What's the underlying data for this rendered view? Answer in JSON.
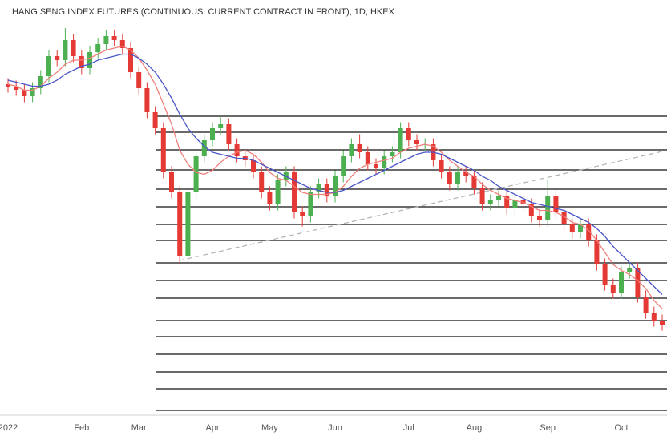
{
  "chart_data": {
    "type": "candlestick",
    "title": "HANG SENG INDEX FUTURES (CONTINUOUS: CURRENT CONTRACT IN FRONT), 1D, HKEX",
    "categories": [
      "2022",
      null,
      null,
      null,
      null,
      null,
      null,
      null,
      null,
      "Feb",
      null,
      null,
      null,
      null,
      null,
      null,
      "Mar",
      null,
      null,
      null,
      null,
      null,
      null,
      null,
      null,
      "Apr",
      null,
      null,
      null,
      null,
      null,
      null,
      "May",
      null,
      null,
      null,
      null,
      null,
      null,
      null,
      "Jun",
      null,
      null,
      null,
      null,
      null,
      null,
      null,
      null,
      "Jul",
      null,
      null,
      null,
      null,
      null,
      null,
      null,
      "Aug",
      null,
      null,
      null,
      null,
      null,
      null,
      null,
      null,
      "Sep",
      null,
      null,
      null,
      null,
      null,
      null,
      null,
      null,
      "Oct",
      null,
      null,
      null,
      null,
      null
    ],
    "opens": [
      23700,
      23640,
      23560,
      23400,
      23600,
      23900,
      24400,
      24300,
      24800,
      24400,
      24100,
      24500,
      24700,
      24900,
      24800,
      24600,
      24000,
      23600,
      23000,
      22600,
      21500,
      21000,
      19400,
      21000,
      21900,
      22300,
      22600,
      22700,
      22200,
      21900,
      21800,
      21500,
      21000,
      20700,
      21300,
      21500,
      20500,
      20400,
      21000,
      21200,
      20900,
      21400,
      21900,
      22200,
      22000,
      21700,
      21600,
      21900,
      22000,
      22600,
      22300,
      22200,
      22200,
      21800,
      21500,
      21200,
      21500,
      21400,
      21100,
      20700,
      20800,
      20900,
      20600,
      20800,
      20700,
      20400,
      20300,
      20900,
      20500,
      20200,
      20000,
      20200,
      19800,
      19200,
      18700,
      18500,
      19000,
      19100,
      18400,
      18000,
      17800
    ],
    "highs": [
      23850,
      23790,
      23710,
      23750,
      24050,
      24550,
      24550,
      25100,
      24950,
      24550,
      24650,
      24850,
      25050,
      25050,
      24950,
      24750,
      24150,
      23750,
      23150,
      22750,
      21650,
      21150,
      21150,
      22050,
      22450,
      22750,
      22900,
      22850,
      22350,
      22050,
      21950,
      21650,
      21150,
      21450,
      21650,
      21650,
      20650,
      21150,
      21350,
      21350,
      21550,
      22050,
      22350,
      22450,
      22150,
      21850,
      22050,
      22150,
      22750,
      22750,
      22450,
      22350,
      22350,
      21950,
      21650,
      21650,
      21650,
      21550,
      21250,
      20950,
      21050,
      21050,
      20950,
      20950,
      20850,
      20550,
      21300,
      21050,
      20650,
      20350,
      20350,
      20350,
      19950,
      19350,
      18850,
      19150,
      19250,
      19250,
      18550,
      18150,
      17950
    ],
    "lows": [
      23490,
      23410,
      23250,
      23250,
      23450,
      23750,
      24150,
      24150,
      24250,
      23950,
      23950,
      24350,
      24550,
      24650,
      24450,
      23850,
      23450,
      22850,
      22450,
      21350,
      20850,
      19200,
      19250,
      20850,
      21750,
      22150,
      22450,
      22050,
      21750,
      21650,
      21350,
      20850,
      20550,
      20550,
      21150,
      20350,
      20150,
      20250,
      20850,
      20750,
      20750,
      21250,
      21750,
      21850,
      21550,
      21450,
      21450,
      21750,
      21850,
      22150,
      22050,
      22050,
      21650,
      21350,
      21050,
      21050,
      21250,
      20950,
      20550,
      20550,
      20650,
      20450,
      20450,
      20550,
      20250,
      20150,
      20150,
      20350,
      20050,
      19850,
      19850,
      19650,
      19050,
      18550,
      18350,
      18350,
      18850,
      18250,
      17850,
      17650,
      17550
    ],
    "closes": [
      23640,
      23560,
      23400,
      23600,
      23900,
      24400,
      24300,
      24800,
      24400,
      24100,
      24500,
      24700,
      24900,
      24800,
      24600,
      24000,
      23600,
      23000,
      22600,
      21500,
      21000,
      19400,
      21000,
      21900,
      22300,
      22600,
      22700,
      22200,
      21900,
      21800,
      21500,
      21000,
      20700,
      21300,
      21500,
      20500,
      20400,
      21000,
      21200,
      20900,
      21400,
      21900,
      22200,
      22000,
      21700,
      21600,
      21900,
      22000,
      22600,
      22300,
      22200,
      22200,
      21800,
      21500,
      21200,
      21500,
      21400,
      21100,
      20700,
      20800,
      20900,
      20600,
      20800,
      20700,
      20400,
      20300,
      20900,
      20500,
      20200,
      20000,
      20200,
      19800,
      19200,
      18700,
      18500,
      19000,
      19100,
      18400,
      18000,
      17800,
      17700
    ],
    "up_color": "#4caf50",
    "down_color": "#e53935",
    "moving_averages": [
      {
        "color": "#ef7f7a",
        "values": [
          23700,
          23650,
          23550,
          23550,
          23650,
          23850,
          24000,
          24200,
          24300,
          24300,
          24350,
          24450,
          24550,
          24600,
          24650,
          24550,
          24350,
          24050,
          23700,
          23200,
          22700,
          22050,
          21700,
          21500,
          21450,
          21550,
          21750,
          21900,
          22000,
          22050,
          21950,
          21750,
          21500,
          21350,
          21300,
          21150,
          21000,
          20950,
          20950,
          20950,
          21000,
          21150,
          21400,
          21600,
          21700,
          21750,
          21800,
          21850,
          22000,
          22100,
          22150,
          22200,
          22150,
          22000,
          21800,
          21650,
          21500,
          21400,
          21200,
          21050,
          20950,
          20850,
          20800,
          20750,
          20650,
          20550,
          20550,
          20500,
          20400,
          20250,
          20200,
          20050,
          19800,
          19500,
          19200,
          19050,
          18950,
          18800,
          18600,
          18300,
          18100
        ]
      },
      {
        "color": "#4a56c8",
        "values": [
          23800,
          23750,
          23700,
          23650,
          23650,
          23700,
          23800,
          23950,
          24050,
          24150,
          24200,
          24300,
          24350,
          24400,
          24450,
          24450,
          24350,
          24200,
          24000,
          23700,
          23350,
          22950,
          22600,
          22350,
          22150,
          22000,
          21950,
          21900,
          21850,
          21850,
          21800,
          21700,
          21600,
          21500,
          21400,
          21300,
          21200,
          21100,
          21050,
          21000,
          21000,
          21050,
          21150,
          21250,
          21350,
          21450,
          21550,
          21650,
          21750,
          21850,
          21950,
          22000,
          22000,
          21950,
          21850,
          21750,
          21650,
          21550,
          21400,
          21300,
          21150,
          21050,
          20950,
          20850,
          20750,
          20700,
          20650,
          20600,
          20550,
          20450,
          20350,
          20250,
          20100,
          19900,
          19650,
          19450,
          19250,
          19050,
          18850,
          18650,
          18450
        ]
      }
    ],
    "levels": [
      22900,
      22500,
      22060,
      21560,
      21080,
      20640,
      20200,
      19800,
      19240,
      18800,
      18360,
      17800,
      17400,
      16960,
      16520,
      16100,
      15560
    ],
    "level_color": "#111111",
    "trendline": {
      "x": [
        21,
        80
      ],
      "values": [
        19300,
        22020
      ],
      "color": "#b0b0b0"
    },
    "ylim": [
      15500,
      25800
    ]
  }
}
